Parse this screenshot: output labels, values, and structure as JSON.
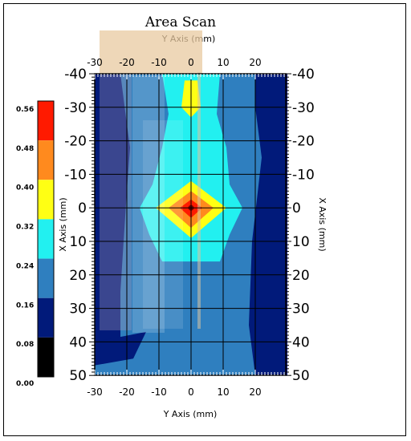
{
  "chart_data": {
    "type": "heatmap",
    "title": "Area Scan",
    "x_axis_top_label": "Y Axis (mm)",
    "x_axis_bottom_label": "Y Axis (mm)",
    "y_axis_left_label": "X Axis (mm)",
    "y_axis_right_label": "X Axis (mm)",
    "y_axis_range_mm": [
      -30,
      30
    ],
    "x_axis_range_mm": [
      -40,
      50
    ],
    "top_ticks": [
      "-30",
      "-20",
      "-10",
      "0",
      "10",
      "20"
    ],
    "bottom_ticks": [
      "-30",
      "-20",
      "-10",
      "0",
      "10",
      "20"
    ],
    "left_ticks": [
      "-40",
      "-30",
      "-20",
      "-10",
      "0",
      "10",
      "20",
      "30",
      "40",
      "50"
    ],
    "right_ticks": [
      "-40",
      "-30",
      "-20",
      "-10",
      "0",
      "10",
      "20",
      "30",
      "40",
      "50"
    ],
    "grid": true,
    "legend_placement": "left",
    "colorbar": {
      "ticks": [
        "0.56",
        "0.48",
        "0.40",
        "0.32",
        "0.24",
        "0.16",
        "0.08",
        "0.00"
      ],
      "bands": [
        {
          "from": 0.48,
          "to": 0.56,
          "color": "#ff1a00"
        },
        {
          "from": 0.4,
          "to": 0.48,
          "color": "#ff8a1e"
        },
        {
          "from": 0.32,
          "to": 0.4,
          "color": "#ffff14"
        },
        {
          "from": 0.24,
          "to": 0.32,
          "color": "#22f0f0"
        },
        {
          "from": 0.16,
          "to": 0.24,
          "color": "#2f7fbf"
        },
        {
          "from": 0.08,
          "to": 0.16,
          "color": "#011a7a"
        },
        {
          "from": 0.0,
          "to": 0.08,
          "color": "#000000"
        }
      ]
    },
    "peak": {
      "y_mm": 0,
      "x_mm": 0,
      "value": 0.56
    }
  }
}
